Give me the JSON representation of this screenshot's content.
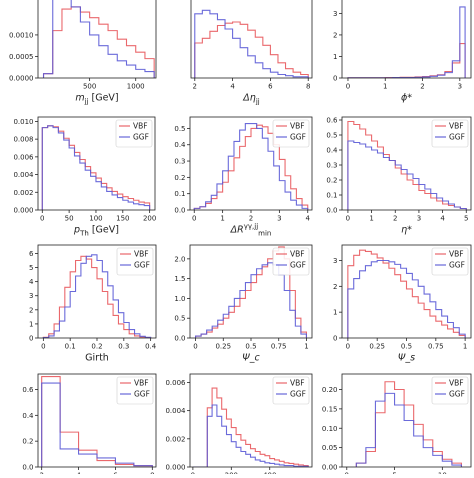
{
  "figure": {
    "colors": {
      "VBF": "#e8585c",
      "GGF": "#5a5ad6",
      "axis": "#222222",
      "background": "#ffffff"
    }
  },
  "chart_data": [
    {
      "id": "mjj",
      "type": "histogram",
      "xlabel": "m_{jj} [GeV]",
      "xlim": [
        -60,
        1220
      ],
      "ylim": [
        0,
        0.00195
      ],
      "xticks": [
        500,
        1000
      ],
      "yticks": [
        0,
        0.0005,
        0.001
      ],
      "ytick_labels": [
        "0.0000",
        "0.0005",
        "0.0010"
      ],
      "legend": null,
      "bin_edges": [
        0,
        100,
        200,
        300,
        400,
        500,
        600,
        700,
        800,
        900,
        1000,
        1100,
        1200
      ],
      "series": [
        {
          "name": "VBF",
          "values": [
            0.0001,
            0.0011,
            0.0016,
            0.00165,
            0.00153,
            0.0014,
            0.00125,
            0.0011,
            0.0009,
            0.00075,
            0.0006,
            0.00045
          ]
        },
        {
          "name": "GGF",
          "values": [
            0.0001,
            0.00195,
            0.00195,
            0.00165,
            0.0013,
            0.001,
            0.00075,
            0.00055,
            0.0004,
            0.0003,
            0.0002,
            0.00015
          ]
        }
      ]
    },
    {
      "id": "deta",
      "type": "histogram",
      "xlabel": "Δη_{jj}",
      "xlim": [
        1.8,
        8.2
      ],
      "ylim": [
        0,
        0.72
      ],
      "xticks": [
        2,
        4,
        6,
        8
      ],
      "yticks": [],
      "ytick_labels": [],
      "legend": null,
      "bin_edges": [
        2.0,
        2.4,
        2.8,
        3.2,
        3.6,
        4.0,
        4.4,
        4.8,
        5.2,
        5.6,
        6.0,
        6.4,
        6.8,
        7.2,
        7.6,
        8.0
      ],
      "series": [
        {
          "name": "VBF",
          "values": [
            0.3,
            0.34,
            0.4,
            0.45,
            0.47,
            0.48,
            0.46,
            0.41,
            0.35,
            0.28,
            0.2,
            0.13,
            0.08,
            0.05,
            0.03
          ]
        },
        {
          "name": "GGF",
          "values": [
            0.55,
            0.58,
            0.55,
            0.5,
            0.42,
            0.34,
            0.26,
            0.19,
            0.13,
            0.08,
            0.05,
            0.03,
            0.02,
            0.01,
            0.01
          ]
        }
      ]
    },
    {
      "id": "phistar",
      "type": "histogram",
      "xlabel": "ϕ*",
      "xlim": [
        -0.16,
        3.3
      ],
      "ylim": [
        0,
        3.9
      ],
      "xticks": [
        0,
        1,
        2,
        3
      ],
      "yticks": [
        0,
        1,
        2,
        3
      ],
      "ytick_labels": [
        "0",
        "1",
        "2",
        "3"
      ],
      "legend": null,
      "bin_edges": [
        0,
        0.2,
        0.4,
        0.6,
        0.8,
        1.0,
        1.2,
        1.4,
        1.6,
        1.8,
        2.0,
        2.2,
        2.4,
        2.6,
        2.8,
        3.0,
        3.1416
      ],
      "series": [
        {
          "name": "VBF",
          "values": [
            0.01,
            0.01,
            0.01,
            0.01,
            0.01,
            0.02,
            0.02,
            0.03,
            0.03,
            0.05,
            0.07,
            0.1,
            0.15,
            0.3,
            0.7,
            1.6
          ]
        },
        {
          "name": "GGF",
          "values": [
            0.01,
            0.01,
            0.01,
            0.01,
            0.01,
            0.01,
            0.02,
            0.02,
            0.02,
            0.03,
            0.05,
            0.08,
            0.13,
            0.25,
            0.8,
            3.3
          ]
        }
      ]
    },
    {
      "id": "pth",
      "type": "histogram",
      "xlabel": "p_{Th} [GeV]",
      "xlim": [
        -8,
        210
      ],
      "ylim": [
        0,
        0.0105
      ],
      "xticks": [
        0,
        50,
        100,
        150,
        200
      ],
      "yticks": [
        0,
        0.002,
        0.004,
        0.006,
        0.008,
        0.01
      ],
      "ytick_labels": [
        "0.000",
        "0.002",
        "0.004",
        "0.006",
        "0.008",
        "0.010"
      ],
      "legend": [
        "VBF",
        "GGF"
      ],
      "bin_edges": [
        0,
        10,
        20,
        30,
        40,
        50,
        60,
        70,
        80,
        90,
        100,
        110,
        120,
        130,
        140,
        150,
        160,
        170,
        180,
        190,
        200
      ],
      "series": [
        {
          "name": "VBF",
          "values": [
            0.0093,
            0.0095,
            0.0094,
            0.0089,
            0.0081,
            0.0073,
            0.0065,
            0.0057,
            0.0049,
            0.0042,
            0.0036,
            0.003,
            0.0025,
            0.0021,
            0.0018,
            0.0015,
            0.0013,
            0.0011,
            0.0009,
            0.0008
          ]
        },
        {
          "name": "GGF",
          "values": [
            0.0093,
            0.0095,
            0.0093,
            0.0087,
            0.0079,
            0.007,
            0.0061,
            0.0053,
            0.0045,
            0.0038,
            0.0032,
            0.0026,
            0.0021,
            0.0017,
            0.0014,
            0.0011,
            0.0009,
            0.0007,
            0.0006,
            0.0005
          ]
        }
      ]
    },
    {
      "id": "drmin",
      "type": "histogram",
      "xlabel": "ΔR^{γγ,jj}_{min}",
      "xlim": [
        -0.15,
        4.15
      ],
      "ylim": [
        0,
        0.57
      ],
      "xticks": [
        0,
        1,
        2,
        3,
        4
      ],
      "yticks": [
        0,
        0.1,
        0.2,
        0.3,
        0.4,
        0.5
      ],
      "ytick_labels": [
        "0.0",
        "0.1",
        "0.2",
        "0.3",
        "0.4",
        "0.5"
      ],
      "legend": [
        "VBF",
        "GGF"
      ],
      "bin_edges": [
        0,
        0.2,
        0.4,
        0.6,
        0.8,
        1.0,
        1.2,
        1.4,
        1.6,
        1.8,
        2.0,
        2.2,
        2.4,
        2.6,
        2.8,
        3.0,
        3.2,
        3.4,
        3.6,
        3.8,
        4.0
      ],
      "series": [
        {
          "name": "VBF",
          "values": [
            0.01,
            0.02,
            0.04,
            0.07,
            0.11,
            0.17,
            0.24,
            0.32,
            0.39,
            0.45,
            0.5,
            0.52,
            0.51,
            0.47,
            0.4,
            0.31,
            0.21,
            0.13,
            0.07,
            0.03
          ]
        },
        {
          "name": "GGF",
          "values": [
            0.01,
            0.02,
            0.05,
            0.09,
            0.16,
            0.24,
            0.33,
            0.42,
            0.49,
            0.53,
            0.53,
            0.5,
            0.44,
            0.36,
            0.27,
            0.18,
            0.11,
            0.06,
            0.03,
            0.01
          ]
        }
      ]
    },
    {
      "id": "etastar",
      "type": "histogram",
      "xlabel": "η*",
      "xlim": [
        -0.25,
        5.2
      ],
      "ylim": [
        0,
        0.62
      ],
      "xticks": [
        0,
        1,
        2,
        3,
        4,
        5
      ],
      "yticks": [
        0,
        0.1,
        0.2,
        0.3,
        0.4,
        0.5,
        0.6
      ],
      "ytick_labels": [
        "0.0",
        "0.1",
        "0.2",
        "0.3",
        "0.4",
        "0.5",
        "0.6"
      ],
      "legend": [
        "VBF",
        "GGF"
      ],
      "bin_edges": [
        0,
        0.25,
        0.5,
        0.75,
        1.0,
        1.25,
        1.5,
        1.75,
        2.0,
        2.25,
        2.5,
        2.75,
        3.0,
        3.25,
        3.5,
        3.75,
        4.0,
        4.25,
        4.5,
        4.75,
        5.0
      ],
      "series": [
        {
          "name": "VBF",
          "values": [
            0.59,
            0.57,
            0.54,
            0.5,
            0.46,
            0.42,
            0.37,
            0.33,
            0.28,
            0.24,
            0.2,
            0.17,
            0.13,
            0.11,
            0.08,
            0.06,
            0.04,
            0.03,
            0.02,
            0.01
          ]
        },
        {
          "name": "GGF",
          "values": [
            0.46,
            0.45,
            0.44,
            0.42,
            0.4,
            0.38,
            0.35,
            0.33,
            0.3,
            0.27,
            0.24,
            0.21,
            0.17,
            0.14,
            0.11,
            0.08,
            0.06,
            0.04,
            0.02,
            0.01
          ]
        }
      ]
    },
    {
      "id": "girth",
      "type": "histogram",
      "xlabel": "Girth",
      "xlim": [
        -0.02,
        0.42
      ],
      "ylim": [
        0,
        6.6
      ],
      "xticks": [
        0.0,
        0.1,
        0.2,
        0.3,
        0.4
      ],
      "yticks": [
        0,
        1,
        2,
        3,
        4,
        5,
        6
      ],
      "ytick_labels": [
        "0",
        "1",
        "2",
        "3",
        "4",
        "5",
        "6"
      ],
      "legend": [
        "VBF",
        "GGF"
      ],
      "bin_edges": [
        0,
        0.02,
        0.04,
        0.06,
        0.08,
        0.1,
        0.12,
        0.14,
        0.16,
        0.18,
        0.2,
        0.22,
        0.24,
        0.26,
        0.28,
        0.3,
        0.32,
        0.34,
        0.36,
        0.38,
        0.4
      ],
      "series": [
        {
          "name": "VBF",
          "values": [
            0.05,
            0.3,
            1.0,
            2.2,
            3.6,
            4.7,
            5.5,
            5.8,
            5.6,
            5.0,
            4.2,
            3.3,
            2.4,
            1.6,
            1.0,
            0.6,
            0.3,
            0.15,
            0.07,
            0.03
          ]
        },
        {
          "name": "GGF",
          "values": [
            0.03,
            0.15,
            0.5,
            1.2,
            2.2,
            3.3,
            4.4,
            5.3,
            5.8,
            5.9,
            5.5,
            4.7,
            3.7,
            2.7,
            1.8,
            1.1,
            0.6,
            0.3,
            0.12,
            0.05
          ]
        }
      ]
    },
    {
      "id": "psic",
      "type": "histogram",
      "xlabel": "Ψ_c",
      "xlim": [
        -0.05,
        1.05
      ],
      "ylim": [
        0,
        2.35
      ],
      "xticks": [
        0.0,
        0.25,
        0.5,
        0.75,
        1.0
      ],
      "yticks": [
        0,
        0.5,
        1.0,
        1.5,
        2.0
      ],
      "ytick_labels": [
        "0.0",
        "0.5",
        "1.0",
        "1.5",
        "2.0"
      ],
      "legend": [
        "VBF",
        "GGF"
      ],
      "bin_edges": [
        0,
        0.05,
        0.1,
        0.15,
        0.2,
        0.25,
        0.3,
        0.35,
        0.4,
        0.45,
        0.5,
        0.55,
        0.6,
        0.65,
        0.7,
        0.75,
        0.8,
        0.85,
        0.9,
        0.95,
        1.0
      ],
      "series": [
        {
          "name": "VBF",
          "values": [
            0.05,
            0.1,
            0.15,
            0.25,
            0.35,
            0.5,
            0.65,
            0.8,
            1.0,
            1.2,
            1.4,
            1.6,
            1.8,
            2.0,
            2.2,
            2.3,
            2.0,
            1.2,
            0.5,
            0.15
          ]
        },
        {
          "name": "GGF",
          "values": [
            0.05,
            0.1,
            0.2,
            0.3,
            0.45,
            0.6,
            0.8,
            1.0,
            1.2,
            1.4,
            1.6,
            1.75,
            1.85,
            1.9,
            1.85,
            1.6,
            1.2,
            0.7,
            0.3,
            0.1
          ]
        }
      ]
    },
    {
      "id": "psis",
      "type": "histogram",
      "xlabel": "Ψ_s",
      "xlim": [
        -0.05,
        1.05
      ],
      "ylim": [
        0,
        3.6
      ],
      "xticks": [
        0.0,
        0.25,
        0.5,
        0.75,
        1.0
      ],
      "yticks": [
        0,
        1,
        2,
        3
      ],
      "ytick_labels": [
        "0",
        "1",
        "2",
        "3"
      ],
      "legend": [
        "VBF",
        "GGF"
      ],
      "bin_edges": [
        0,
        0.05,
        0.1,
        0.15,
        0.2,
        0.25,
        0.3,
        0.35,
        0.4,
        0.45,
        0.5,
        0.55,
        0.6,
        0.65,
        0.7,
        0.75,
        0.8,
        0.85,
        0.9,
        0.95,
        1.0
      ],
      "series": [
        {
          "name": "VBF",
          "values": [
            2.8,
            3.2,
            3.4,
            3.35,
            3.25,
            3.1,
            2.9,
            2.7,
            2.45,
            2.2,
            1.9,
            1.6,
            1.35,
            1.1,
            0.85,
            0.65,
            0.5,
            0.35,
            0.22,
            0.1
          ]
        },
        {
          "name": "GGF",
          "values": [
            1.9,
            2.3,
            2.6,
            2.8,
            2.95,
            3.0,
            3.0,
            2.95,
            2.85,
            2.7,
            2.5,
            2.25,
            2.0,
            1.7,
            1.4,
            1.1,
            0.85,
            0.6,
            0.4,
            0.15
          ]
        }
      ]
    },
    {
      "id": "njets",
      "type": "histogram",
      "xlabel": "",
      "xlim": [
        1.8,
        8.2
      ],
      "ylim": [
        0,
        0.72
      ],
      "xticks": [
        2,
        4,
        6,
        8
      ],
      "yticks": [
        0,
        0.2,
        0.4,
        0.6
      ],
      "ytick_labels": [
        "0.0",
        "0.2",
        "0.4",
        "0.6"
      ],
      "legend": [
        "VBF",
        "GGF"
      ],
      "bin_edges": [
        2,
        3,
        4,
        5,
        6,
        7,
        8
      ],
      "series": [
        {
          "name": "VBF",
          "values": [
            0.7,
            0.27,
            0.13,
            0.05,
            0.02,
            0.01
          ]
        },
        {
          "name": "GGF",
          "values": [
            0.65,
            0.14,
            0.1,
            0.07,
            0.03,
            0.01
          ]
        }
      ]
    },
    {
      "id": "ht",
      "type": "histogram",
      "xlabel": "",
      "xlim": [
        -15,
        620
      ],
      "ylim": [
        0,
        0.0066
      ],
      "xticks": [
        0,
        200,
        400
      ],
      "yticks": [
        0,
        0.002,
        0.004,
        0.006
      ],
      "ytick_labels": [
        "0.000",
        "0.002",
        "0.004",
        "0.006"
      ],
      "legend": [
        "VBF",
        "GGF"
      ],
      "bin_edges": [
        0,
        25,
        50,
        75,
        100,
        125,
        150,
        175,
        200,
        225,
        250,
        275,
        300,
        325,
        350,
        375,
        400,
        425,
        450,
        475,
        500,
        525,
        550,
        575,
        600
      ],
      "series": [
        {
          "name": "VBF",
          "values": [
            0.0,
            0.0,
            0.0,
            0.0042,
            0.0056,
            0.0049,
            0.0041,
            0.0034,
            0.0028,
            0.0023,
            0.0019,
            0.0016,
            0.0013,
            0.0011,
            0.0009,
            0.0008,
            0.0006,
            0.0005,
            0.0004,
            0.0003,
            0.00025,
            0.0002,
            0.00015,
            0.0001
          ]
        },
        {
          "name": "GGF",
          "values": [
            0.0,
            0.0,
            0.0,
            0.0036,
            0.0044,
            0.0036,
            0.0029,
            0.0023,
            0.0018,
            0.0014,
            0.0011,
            0.0009,
            0.0007,
            0.0005,
            0.0004,
            0.0003,
            0.00025,
            0.0002,
            0.00015,
            0.0001,
            0.0001,
            5e-05,
            5e-05,
            5e-05
          ]
        }
      ]
    },
    {
      "id": "nconst",
      "type": "histogram",
      "xlabel": "",
      "xlim": [
        -0.5,
        13
      ],
      "ylim": [
        0,
        0.24
      ],
      "xticks": [
        0,
        5,
        10
      ],
      "yticks": [
        0,
        0.05,
        0.1,
        0.15,
        0.2
      ],
      "ytick_labels": [
        "0.00",
        "0.05",
        "0.10",
        "0.15",
        "0.20"
      ],
      "legend": [
        "VBF",
        "GGF"
      ],
      "bin_edges": [
        1,
        2,
        3,
        4,
        5,
        6,
        7,
        8,
        9,
        10,
        11,
        12
      ],
      "series": [
        {
          "name": "VBF",
          "values": [
            0.01,
            0.04,
            0.14,
            0.22,
            0.2,
            0.16,
            0.11,
            0.07,
            0.04,
            0.02,
            0.01
          ]
        },
        {
          "name": "GGF",
          "values": [
            0.01,
            0.05,
            0.17,
            0.19,
            0.16,
            0.12,
            0.08,
            0.05,
            0.03,
            0.015,
            0.005
          ]
        }
      ]
    }
  ]
}
